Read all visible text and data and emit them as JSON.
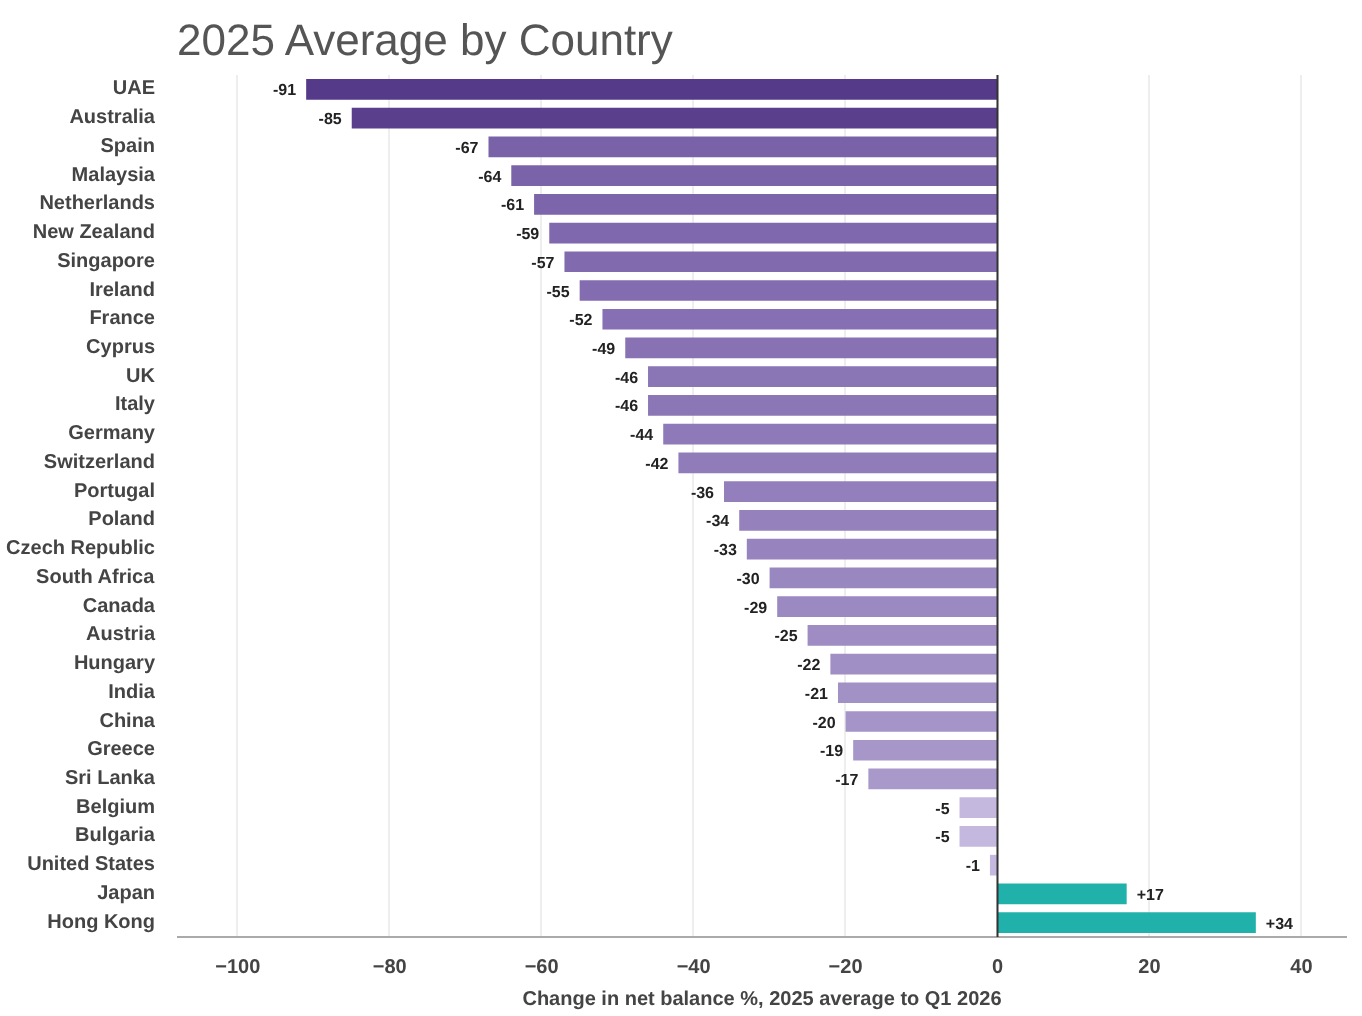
{
  "chart_data": {
    "type": "bar",
    "orientation": "horizontal",
    "title": "2025 Average by Country",
    "xlabel": "Change in net balance %, 2025 average to Q1 2026",
    "categories": [
      "UAE",
      "Australia",
      "Spain",
      "Malaysia",
      "Netherlands",
      "New Zealand",
      "Singapore",
      "Ireland",
      "France",
      "Cyprus",
      "UK",
      "Italy",
      "Germany",
      "Switzerland",
      "Portugal",
      "Poland",
      "Czech Republic",
      "South Africa",
      "Canada",
      "Austria",
      "Hungary",
      "India",
      "China",
      "Greece",
      "Sri Lanka",
      "Belgium",
      "Bulgaria",
      "United States",
      "Japan",
      "Hong Kong"
    ],
    "values": [
      -91,
      -85,
      -67,
      -64,
      -61,
      -59,
      -57,
      -55,
      -52,
      -49,
      -46,
      -46,
      -44,
      -42,
      -36,
      -34,
      -33,
      -30,
      -29,
      -25,
      -22,
      -21,
      -20,
      -19,
      -17,
      -5,
      -5,
      -1,
      17,
      34
    ],
    "value_labels": [
      "-91",
      "-85",
      "-67",
      "-64",
      "-61",
      "-59",
      "-57",
      "-55",
      "-52",
      "-49",
      "-46",
      "-46",
      "-44",
      "-42",
      "-36",
      "-34",
      "-33",
      "-30",
      "-29",
      "-25",
      "-22",
      "-21",
      "-20",
      "-19",
      "-17",
      "-5",
      "-5",
      "-1",
      "+17",
      "+34"
    ],
    "colors": [
      "#553a8a",
      "#5a3f8d",
      "#7a62a8",
      "#7b63a9",
      "#7d65ab",
      "#7f68ad",
      "#816aae",
      "#836db0",
      "#866fb2",
      "#8872b3",
      "#8a75b5",
      "#8c77b6",
      "#8e7ab8",
      "#907cb9",
      "#937fbb",
      "#9582bc",
      "#9784be",
      "#9987bf",
      "#9b89c1",
      "#9e8cc2",
      "#a08fc4",
      "#a291c5",
      "#a494c7",
      "#a697c8",
      "#a899ca",
      "#c5b8df",
      "#c5b8df",
      "#c5b8df",
      "#20b2aa",
      "#20b2aa"
    ],
    "xlim": [
      -108,
      46
    ],
    "xticks": [
      {
        "value": -100,
        "label": "−100"
      },
      {
        "value": -80,
        "label": "−80"
      },
      {
        "value": -60,
        "label": "−60"
      },
      {
        "value": -40,
        "label": "−40"
      },
      {
        "value": -20,
        "label": "−20"
      },
      0,
      20,
      40
    ],
    "grid": "x"
  }
}
